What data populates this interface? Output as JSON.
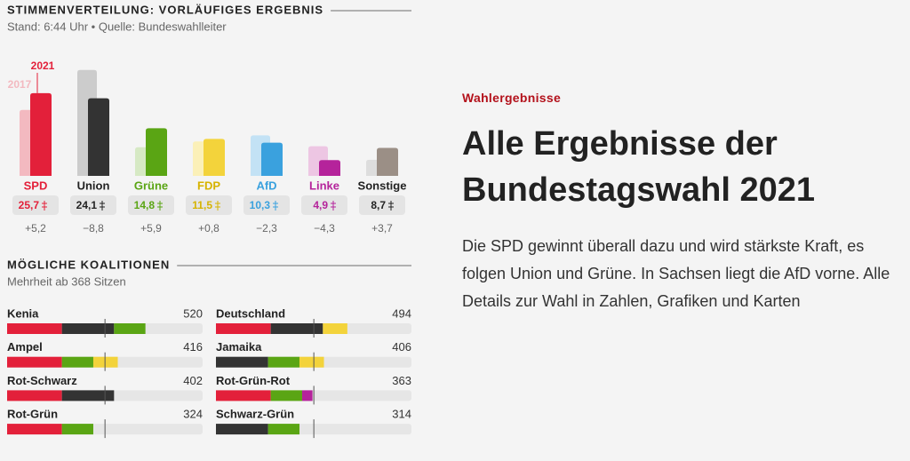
{
  "chart_data": [
    {
      "type": "bar",
      "title": "STIMMENVERTEILUNG: VORLÄUFIGES ERGEBNIS",
      "subtitle": "Stand: 6:44 Uhr • Quelle: Bundeswahlleiter",
      "categories": [
        "SPD",
        "Union",
        "Grüne",
        "FDP",
        "AfD",
        "Linke",
        "Sonstige"
      ],
      "label_colors": [
        "#e3203a",
        "#222222",
        "#5aa514",
        "#d6b300",
        "#3aa1de",
        "#b5239b",
        "#222222"
      ],
      "series": [
        {
          "name": "2017",
          "colors": [
            "#f3b9c0",
            "#cccccc",
            "#d6e9c4",
            "#fbf0b8",
            "#c3e2f5",
            "#edc6e3",
            "#dddddd"
          ],
          "values": [
            20.5,
            32.9,
            8.9,
            10.7,
            12.6,
            9.2,
            5.0
          ]
        },
        {
          "name": "2021",
          "colors": [
            "#e3203a",
            "#333333",
            "#5aa514",
            "#f3d33b",
            "#3aa1de",
            "#b5239b",
            "#9b8f86"
          ],
          "values": [
            25.7,
            24.1,
            14.8,
            11.5,
            10.3,
            4.9,
            8.7
          ],
          "value_labels": [
            "25,7",
            "24,1",
            "14,8",
            "11,5",
            "10,3",
            "4,9",
            "8,7"
          ]
        }
      ],
      "change_labels": [
        "+5,2",
        "−8,8",
        "+5,9",
        "+0,8",
        "−2,3",
        "−4,3",
        "+3,7"
      ],
      "ylim": [
        0,
        40
      ]
    },
    {
      "type": "bar",
      "orientation": "horizontal",
      "stacked": true,
      "title": "MÖGLICHE KOALITIONEN",
      "subtitle": "Mehrheit ab 368 Sitzen",
      "categories": [
        "Kenia",
        "Deutschland",
        "Ampel",
        "Jamaika",
        "Rot-Schwarz",
        "Rot-Grün-Rot",
        "Rot-Grün",
        "Schwarz-Grün"
      ],
      "totals": [
        520,
        494,
        416,
        406,
        402,
        363,
        324,
        314
      ],
      "series": [
        {
          "color": "#e3203a",
          "values": [
            206,
            206,
            206,
            null,
            206,
            206,
            206,
            null
          ]
        },
        {
          "color": "#333333",
          "values": [
            196,
            196,
            null,
            196,
            196,
            null,
            null,
            196
          ]
        },
        {
          "color": "#5aa514",
          "values": [
            118,
            null,
            118,
            118,
            null,
            118,
            118,
            118
          ]
        },
        {
          "color": "#f3d33b",
          "values": [
            null,
            92,
            92,
            92,
            null,
            null,
            null,
            null
          ]
        },
        {
          "color": "#b5239b",
          "values": [
            null,
            null,
            null,
            null,
            null,
            39,
            null,
            null
          ]
        }
      ],
      "majority": 368,
      "xlim": [
        0,
        735
      ]
    }
  ],
  "article": {
    "kicker": "Wahlergebnisse",
    "headline": "Alle Ergebnisse der Bundestagswahl 2021",
    "text": "Die SPD gewinnt überall dazu und wird stärkste Kraft, es folgen Union und Grüne. In Sachsen liegt die AfD vorne. Alle Details zur Wahl in Zahlen, Grafiken und Karten"
  }
}
